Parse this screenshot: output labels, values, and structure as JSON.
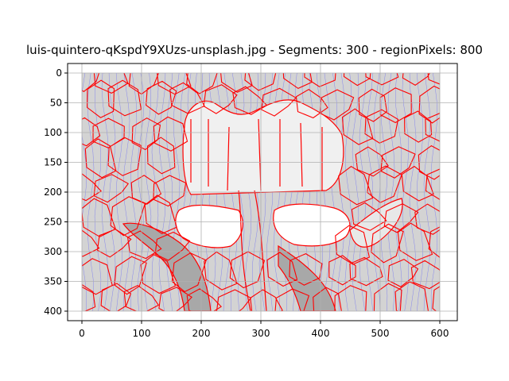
{
  "chart_data": {
    "type": "heatmap",
    "title": "luis-quintero-qKspdY9XUzs-unsplash.jpg - Segments: 300 - regionPixels: 800",
    "xlabel": "",
    "ylabel": "",
    "xlim": [
      0,
      600
    ],
    "ylim": [
      400,
      0
    ],
    "x_ticks": [
      0,
      100,
      200,
      300,
      400,
      500,
      600
    ],
    "y_ticks": [
      0,
      50,
      100,
      150,
      200,
      250,
      300,
      350,
      400
    ],
    "grid": true,
    "colors": {
      "image_fill": "#d3d3d3",
      "boundary": "#ff0000",
      "flow_lines": "#4a4aff",
      "grid": "#b0b0b0"
    }
  }
}
